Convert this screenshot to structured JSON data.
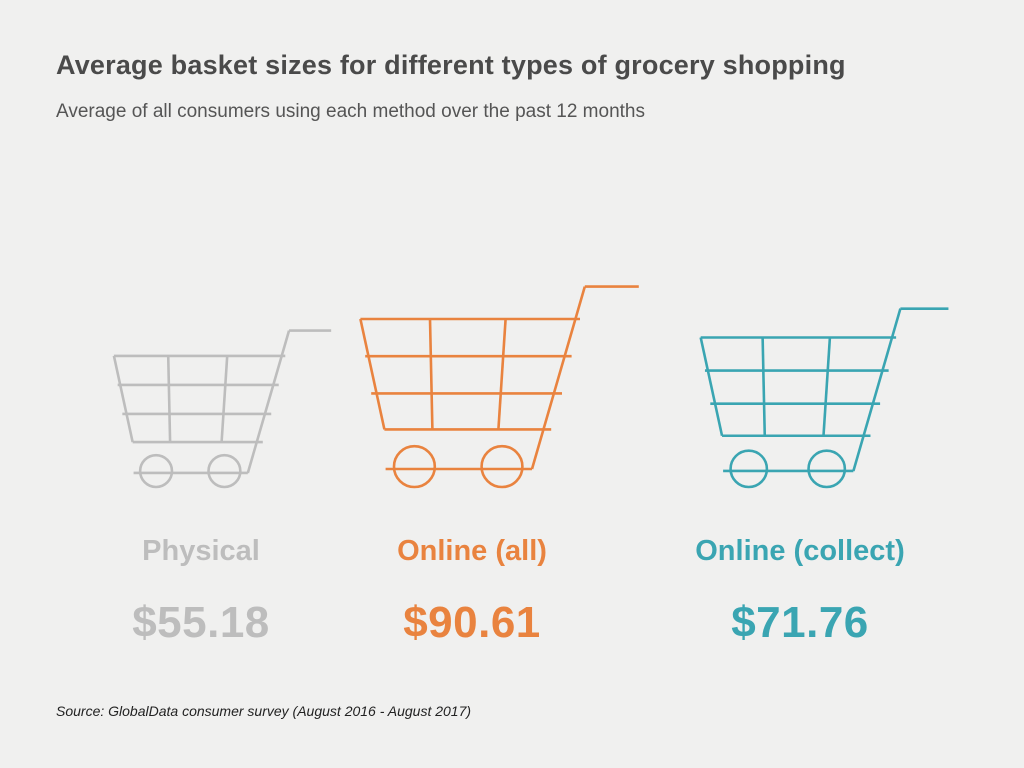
{
  "title": "Average basket sizes for different types of grocery shopping",
  "subtitle": "Average of all consumers using each method over the past 12 months",
  "source": "Source: GlobalData consumer survey (August 2016 - August 2017)",
  "chart_data": {
    "type": "pictograph",
    "unit": "$",
    "icon": "shopping-cart-icon",
    "items": [
      {
        "category": "Physical",
        "value": 55.18,
        "display": "$55.18",
        "color": "#bdbdbd"
      },
      {
        "category": "Online (all)",
        "value": 90.61,
        "display": "$90.61",
        "color": "#e9833f"
      },
      {
        "category": "Online (collect)",
        "value": 71.76,
        "display": "$71.76",
        "color": "#3aa5b2"
      }
    ]
  }
}
